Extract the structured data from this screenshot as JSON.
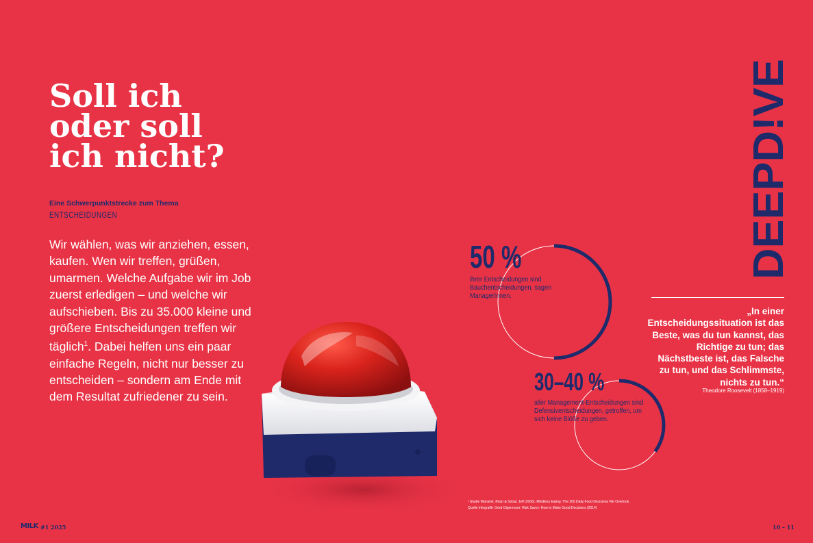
{
  "title": {
    "lines": [
      "Soll ich",
      "oder soll",
      "ich nicht?"
    ]
  },
  "kicker": "Eine Schwerpunktstrecke zum Thema",
  "topic": "ENTSCHEIDUNGEN",
  "intro": {
    "text_before": "Wir wählen, was wir anziehen, essen, kaufen. Wen wir treffen, grüßen, umarmen. Welche Aufgabe wir im Job zuerst erledigen – und welche wir aufschieben. Bis zu 35.000 kleine und größere Entscheidungen treffen wir täglich",
    "footnote_ref": "1",
    "text_after": ". Dabei helfen uns ein paar einfache Regeln, nicht nur besser zu entscheiden – sondern am Ende mit dem Resultat zufriedener zu sein."
  },
  "section_label": {
    "word1": "DEEP",
    "word2": "D!VE"
  },
  "stats": [
    {
      "value": "50 %",
      "fraction": 0.5,
      "description": "ihrer Entscheidungen sind Bauchentscheidungen, sagen ManagerInnen."
    },
    {
      "value": "30–40 %",
      "fraction": 0.35,
      "description": "aller Management-Entscheidungen sind Defensiventscheidungen, getroffen, um sich keine Blöße zu geben."
    }
  ],
  "quote": {
    "text": "„In einer Entscheidungssituation ist das Beste, was du tun kannst, das Richtige zu tun; das Nächstbeste ist, das Falsche zu tun, und das Schlimmste, nichts zu tun.“",
    "source": "Theodore Roosevelt (1858–1919)"
  },
  "footnote": {
    "line1": "¹ Studie Wansink, Brian & Sobal, Jeff (2006). Mindless Eating: The 200 Daily Food Decisions We Overlook.",
    "line2": "Quelle Infografik: Gerd Gigerenzer: Risk Savvy: How to Make Good Decisions (2014)"
  },
  "footer": {
    "logo": "MILK",
    "issue": "#1 2025",
    "pages": "10 – 11"
  },
  "colors": {
    "background": "#e83346",
    "navy": "#1f2a6b",
    "white": "#ffffff"
  },
  "icons": [
    "big-red-button-illustration"
  ]
}
